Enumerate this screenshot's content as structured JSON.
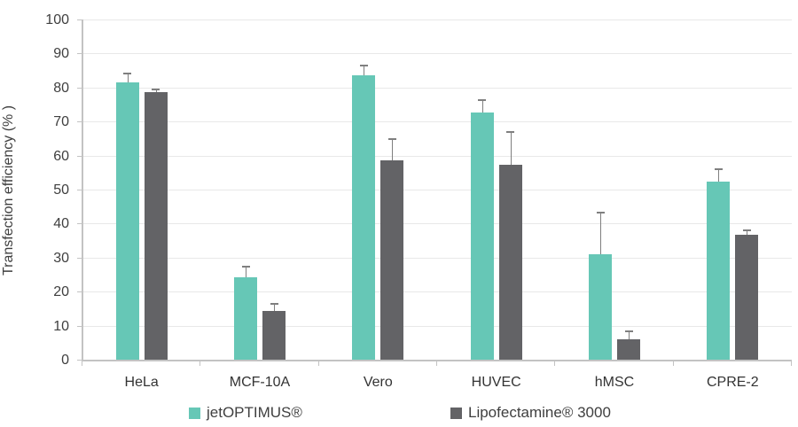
{
  "chart_data": {
    "type": "bar",
    "title": "",
    "xlabel": "",
    "ylabel": "Transfection efficiency (% )",
    "ylim": [
      0,
      100
    ],
    "ytick_step": 10,
    "yticks": [
      100,
      90,
      80,
      70,
      60,
      50,
      40,
      30,
      20,
      10,
      0
    ],
    "grid": true,
    "legend_position": "bottom",
    "categories": [
      "HeLa",
      "MCF-10A",
      "Vero",
      "HUVEC",
      "hMSC",
      "CPRE-2"
    ],
    "series": [
      {
        "name": "jetOPTIMUS®",
        "color": "#66c7b6",
        "values": [
          81.6,
          24.2,
          83.6,
          72.7,
          31.0,
          52.3
        ],
        "errors_plus": [
          2.4,
          3.1,
          2.9,
          3.6,
          12.3,
          3.7
        ]
      },
      {
        "name": "Lipofectamine® 3000",
        "color": "#636366",
        "values": [
          78.7,
          14.3,
          58.6,
          57.3,
          6.0,
          36.7
        ],
        "errors_plus": [
          0.8,
          2.0,
          6.3,
          9.6,
          2.4,
          1.3
        ]
      }
    ],
    "error_bar_color": "#7f7f7f",
    "axis_color": "#c3c3c3",
    "gridline_color": "#e8e8e8",
    "text_color": "#3f3f3f"
  }
}
